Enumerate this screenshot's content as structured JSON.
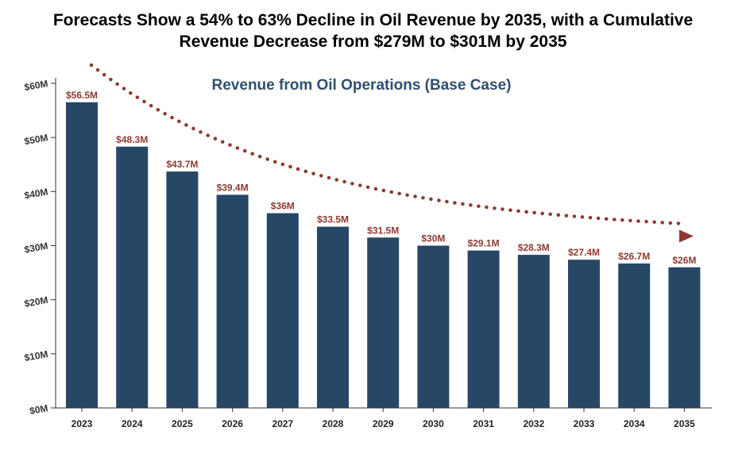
{
  "title": {
    "line1": "Forecasts Show a 54% to 63% Decline in Oil Revenue by 2035, with a Cumulative",
    "line2": "Revenue Decrease from $279M to $301M by 2035"
  },
  "chart_data": {
    "type": "bar",
    "title": "Forecasts Show a 54% to 63% Decline in Oil Revenue by 2035, with a Cumulative Revenue Decrease from $279M to $301M by 2035",
    "subtitle": "Revenue from Oil Operations (Base Case)",
    "categories": [
      "2023",
      "2024",
      "2025",
      "2026",
      "2027",
      "2028",
      "2029",
      "2030",
      "2031",
      "2032",
      "2033",
      "2034",
      "2035"
    ],
    "values": [
      56.5,
      48.3,
      43.7,
      39.4,
      36,
      33.5,
      31.5,
      30,
      29.1,
      28.3,
      27.4,
      26.7,
      26
    ],
    "data_labels": [
      "$56.5M",
      "$48.3M",
      "$43.7M",
      "$39.4M",
      "$36M",
      "$33.5M",
      "$31.5M",
      "$30M",
      "$29.1M",
      "$28.3M",
      "$27.4M",
      "$26.7M",
      "$26M"
    ],
    "yticks": [
      "$0M",
      "$10M",
      "$20M",
      "$30M",
      "$40M",
      "$50M",
      "$60M"
    ],
    "ylim": [
      0,
      60
    ],
    "xlabel": "",
    "ylabel": "",
    "grid": false,
    "legend": "none",
    "trend_arrow": "dotted declining trend arrow",
    "colors": {
      "bar": "#274767",
      "data_label": "#8e3a32",
      "trend": "#8e3a32",
      "subtitle": "#2f4f6f"
    }
  }
}
